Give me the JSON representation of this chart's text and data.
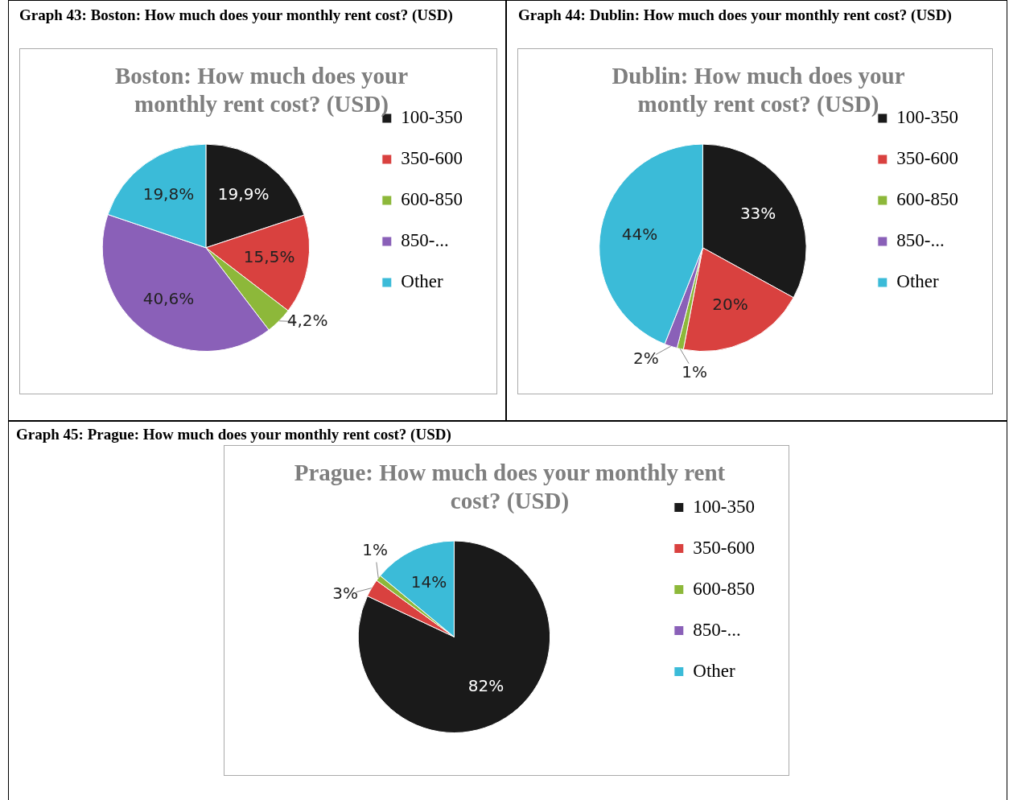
{
  "chart_data": [
    {
      "type": "pie",
      "title": "Boston: How much does your monthly rent cost? (USD)",
      "annotations": [
        "Graph 43: Boston: How much does your monthly rent cost? (USD)"
      ],
      "categories": [
        "100-350",
        "350-600",
        "600-850",
        "850-...",
        "Other"
      ],
      "values": [
        19.9,
        15.5,
        4.2,
        40.6,
        19.8
      ],
      "value_labels": [
        "19,9%",
        "15,5%",
        "4,2%",
        "40,6%",
        "19,8%"
      ],
      "colors": [
        "#1a1a1a",
        "#d9413f",
        "#8db83a",
        "#8a60b8",
        "#3bbbd8"
      ],
      "legend": "right"
    },
    {
      "type": "pie",
      "title": "Dublin: How much does your montly rent cost? (USD)",
      "annotations": [
        "Graph 44: Dublin: How much does your monthly rent cost? (USD)"
      ],
      "categories": [
        "100-350",
        "350-600",
        "600-850",
        "850-...",
        "Other"
      ],
      "values": [
        33,
        20,
        1,
        2,
        44
      ],
      "value_labels": [
        "33%",
        "20%",
        "1%",
        "2%",
        "44%"
      ],
      "colors": [
        "#1a1a1a",
        "#d9413f",
        "#8db83a",
        "#8a60b8",
        "#3bbbd8"
      ],
      "legend": "right"
    },
    {
      "type": "pie",
      "title": "Prague: How much does your monthly rent cost? (USD)",
      "annotations": [
        "Graph 45: Prague: How much does your monthly rent cost? (USD)"
      ],
      "categories": [
        "100-350",
        "350-600",
        "600-850",
        "850-...",
        "Other"
      ],
      "values": [
        82,
        3,
        1,
        0,
        14
      ],
      "value_labels": [
        "82%",
        "3%",
        "1%",
        null,
        "14%"
      ],
      "colors": [
        "#1a1a1a",
        "#d9413f",
        "#8db83a",
        "#8a60b8",
        "#3bbbd8"
      ],
      "legend": "right"
    }
  ]
}
